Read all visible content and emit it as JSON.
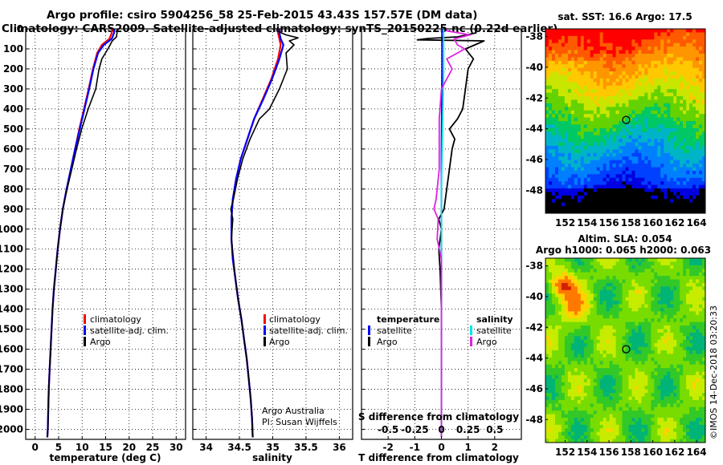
{
  "title": {
    "line1": "Argo profile: csiro 5904256_58 25-Feb-2015 43.43S 157.57E (DM data)",
    "line2": "Climatology: CARS2009. Satellite-adjusted climatology: synTS_20150225.nc (0.22d earlier)"
  },
  "colors": {
    "climatology": "#ff0000",
    "satellite": "#0000ff",
    "argo": "#000000",
    "satellite_salinity": "#00e5e5",
    "argo_salinity": "#e020e0"
  },
  "chart_data": [
    {
      "id": "temperature",
      "type": "line",
      "xlabel": "temperature (deg C)",
      "ylabel": "",
      "xlim": [
        -2,
        32
      ],
      "ylim": [
        2050,
        0
      ],
      "xticks": [
        0,
        5,
        10,
        15,
        20,
        25,
        30
      ],
      "yticks": [
        0,
        100,
        200,
        300,
        400,
        500,
        600,
        700,
        800,
        900,
        1000,
        1100,
        1200,
        1300,
        1400,
        1500,
        1600,
        1700,
        1800,
        1900,
        2000
      ],
      "grid": true,
      "legend": {
        "position": "lower-center",
        "entries": [
          "climatology",
          "satellite-adj. clim.",
          "Argo"
        ]
      },
      "series": [
        {
          "name": "climatology",
          "color": "#ff0000",
          "points": [
            [
              16.5,
              -30
            ],
            [
              16.3,
              20
            ],
            [
              15.8,
              50
            ],
            [
              14.2,
              80
            ],
            [
              13.2,
              120
            ],
            [
              12.3,
              200
            ],
            [
              11.4,
              300
            ],
            [
              10.4,
              400
            ],
            [
              9.4,
              500
            ],
            [
              8.5,
              600
            ],
            [
              7.6,
              700
            ],
            [
              6.7,
              800
            ],
            [
              5.9,
              900
            ],
            [
              5.3,
              1000
            ],
            [
              4.8,
              1100
            ],
            [
              4.4,
              1200
            ],
            [
              4.0,
              1300
            ],
            [
              3.7,
              1400
            ],
            [
              3.5,
              1500
            ],
            [
              3.3,
              1600
            ],
            [
              3.1,
              1700
            ],
            [
              2.9,
              1800
            ],
            [
              2.8,
              1900
            ],
            [
              2.7,
              2000
            ],
            [
              2.6,
              2040
            ]
          ]
        },
        {
          "name": "satellite-adj. clim.",
          "color": "#0000ff",
          "points": [
            [
              17.0,
              -30
            ],
            [
              16.8,
              20
            ],
            [
              16.3,
              50
            ],
            [
              14.6,
              80
            ],
            [
              13.4,
              120
            ],
            [
              12.4,
              200
            ],
            [
              11.5,
              300
            ],
            [
              10.5,
              400
            ],
            [
              9.5,
              500
            ],
            [
              8.5,
              600
            ],
            [
              7.6,
              700
            ],
            [
              6.7,
              800
            ],
            [
              5.9,
              900
            ],
            [
              5.3,
              1000
            ],
            [
              4.8,
              1100
            ],
            [
              4.4,
              1200
            ],
            [
              4.0,
              1300
            ],
            [
              3.7,
              1400
            ],
            [
              3.5,
              1500
            ],
            [
              3.3,
              1600
            ],
            [
              3.1,
              1700
            ],
            [
              2.9,
              1800
            ],
            [
              2.8,
              1900
            ],
            [
              2.7,
              2000
            ],
            [
              2.6,
              2040
            ]
          ]
        },
        {
          "name": "Argo",
          "color": "#000000",
          "points": [
            [
              17.6,
              -30
            ],
            [
              17.5,
              5
            ],
            [
              17.3,
              40
            ],
            [
              16.4,
              60
            ],
            [
              15.5,
              100
            ],
            [
              14.2,
              150
            ],
            [
              13.6,
              200
            ],
            [
              12.9,
              300
            ],
            [
              11.3,
              400
            ],
            [
              9.9,
              500
            ],
            [
              8.8,
              600
            ],
            [
              7.8,
              700
            ],
            [
              6.8,
              800
            ],
            [
              5.9,
              900
            ],
            [
              5.3,
              1000
            ],
            [
              4.8,
              1100
            ],
            [
              4.4,
              1200
            ],
            [
              4.0,
              1300
            ],
            [
              3.7,
              1400
            ],
            [
              3.5,
              1500
            ],
            [
              3.3,
              1600
            ],
            [
              3.1,
              1700
            ],
            [
              2.9,
              1800
            ],
            [
              2.8,
              1900
            ],
            [
              2.7,
              2000
            ],
            [
              2.6,
              2040
            ]
          ]
        }
      ]
    },
    {
      "id": "salinity",
      "type": "line",
      "xlabel": "salinity",
      "ylabel": "",
      "xlim": [
        33.8,
        36.2
      ],
      "ylim": [
        2050,
        0
      ],
      "xticks": [
        34,
        34.5,
        35,
        35.5,
        36
      ],
      "xticklabels": [
        "34",
        "34.5",
        "35",
        "35.5",
        "36"
      ],
      "grid": true,
      "legend": {
        "position": "lower-center",
        "entries": [
          "climatology",
          "satellite-adj. clim.",
          "Argo"
        ]
      },
      "annotation": [
        "Argo Australia",
        "PI: Susan Wijffels"
      ],
      "series": [
        {
          "name": "climatology",
          "color": "#ff0000",
          "points": [
            [
              35.08,
              -30
            ],
            [
              35.08,
              20
            ],
            [
              35.1,
              50
            ],
            [
              35.12,
              80
            ],
            [
              35.08,
              150
            ],
            [
              34.98,
              250
            ],
            [
              34.85,
              350
            ],
            [
              34.72,
              450
            ],
            [
              34.62,
              550
            ],
            [
              34.52,
              650
            ],
            [
              34.45,
              750
            ],
            [
              34.4,
              850
            ],
            [
              34.38,
              950
            ],
            [
              34.38,
              1050
            ],
            [
              34.4,
              1150
            ],
            [
              34.44,
              1250
            ],
            [
              34.48,
              1350
            ],
            [
              34.53,
              1450
            ],
            [
              34.57,
              1550
            ],
            [
              34.61,
              1650
            ],
            [
              34.64,
              1750
            ],
            [
              34.67,
              1850
            ],
            [
              34.69,
              1950
            ],
            [
              34.7,
              2040
            ]
          ]
        },
        {
          "name": "satellite-adj. clim.",
          "color": "#0000ff",
          "points": [
            [
              35.1,
              -30
            ],
            [
              35.1,
              20
            ],
            [
              35.12,
              50
            ],
            [
              35.16,
              80
            ],
            [
              35.1,
              150
            ],
            [
              34.99,
              250
            ],
            [
              34.86,
              350
            ],
            [
              34.72,
              450
            ],
            [
              34.62,
              550
            ],
            [
              34.52,
              650
            ],
            [
              34.45,
              750
            ],
            [
              34.4,
              850
            ],
            [
              34.38,
              950
            ],
            [
              34.38,
              1050
            ],
            [
              34.4,
              1150
            ],
            [
              34.44,
              1250
            ],
            [
              34.48,
              1350
            ],
            [
              34.53,
              1450
            ],
            [
              34.57,
              1550
            ],
            [
              34.61,
              1650
            ],
            [
              34.64,
              1750
            ],
            [
              34.67,
              1850
            ],
            [
              34.69,
              1950
            ],
            [
              34.7,
              2040
            ]
          ]
        },
        {
          "name": "Argo",
          "color": "#000000",
          "points": [
            [
              35.1,
              -30
            ],
            [
              35.06,
              10
            ],
            [
              35.2,
              30
            ],
            [
              35.38,
              45
            ],
            [
              35.25,
              60
            ],
            [
              35.32,
              80
            ],
            [
              35.2,
              120
            ],
            [
              35.22,
              200
            ],
            [
              35.1,
              300
            ],
            [
              34.95,
              400
            ],
            [
              34.8,
              450
            ],
            [
              34.66,
              550
            ],
            [
              34.55,
              650
            ],
            [
              34.47,
              750
            ],
            [
              34.41,
              850
            ],
            [
              34.37,
              900
            ],
            [
              34.4,
              950
            ],
            [
              34.38,
              1050
            ],
            [
              34.41,
              1150
            ],
            [
              34.44,
              1250
            ],
            [
              34.48,
              1350
            ],
            [
              34.53,
              1450
            ],
            [
              34.57,
              1550
            ],
            [
              34.61,
              1650
            ],
            [
              34.64,
              1750
            ],
            [
              34.67,
              1850
            ],
            [
              34.69,
              1950
            ],
            [
              34.7,
              2040
            ]
          ]
        }
      ]
    },
    {
      "id": "difference",
      "type": "line",
      "xlabel": "T difference from climatology",
      "xlabel2": "S difference from climatology",
      "xlim": [
        -3,
        3
      ],
      "xlim_salinity": [
        -0.75,
        0.75
      ],
      "ylim": [
        2050,
        0
      ],
      "xticks": [
        -2,
        -1,
        0,
        1,
        2
      ],
      "xticks2": [
        -0.5,
        -0.25,
        0,
        0.25,
        0.5
      ],
      "xticks2_labels": [
        "-0.5",
        "-0.25",
        "0",
        "0.25",
        "0.5"
      ],
      "grid": true,
      "legend": {
        "position": "lower-center",
        "temperature_title": "temperature",
        "salinity_title": "salinity",
        "entries": [
          "satellite",
          "Argo"
        ]
      },
      "series": [
        {
          "name": "satellite",
          "variable": "temperature",
          "color": "#0000ff",
          "points": [
            [
              0.02,
              -30
            ],
            [
              0.02,
              200
            ],
            [
              0.0,
              600
            ],
            [
              0.0,
              2040
            ]
          ]
        },
        {
          "name": "Argo",
          "variable": "temperature",
          "color": "#000000",
          "points": [
            [
              1.2,
              -30
            ],
            [
              1.3,
              20
            ],
            [
              0.6,
              40
            ],
            [
              -0.5,
              48
            ],
            [
              -0.9,
              55
            ],
            [
              1.6,
              60
            ],
            [
              0.9,
              100
            ],
            [
              1.2,
              150
            ],
            [
              1.0,
              200
            ],
            [
              0.9,
              300
            ],
            [
              0.8,
              400
            ],
            [
              0.6,
              450
            ],
            [
              0.3,
              500
            ],
            [
              0.5,
              550
            ],
            [
              0.4,
              600
            ],
            [
              0.3,
              700
            ],
            [
              0.2,
              800
            ],
            [
              0.1,
              900
            ],
            [
              -0.1,
              950
            ],
            [
              0.0,
              1000
            ],
            [
              -0.1,
              1100
            ],
            [
              -0.05,
              1200
            ],
            [
              0.0,
              1400
            ],
            [
              0.0,
              2040
            ]
          ]
        },
        {
          "name": "satellite",
          "variable": "salinity",
          "color": "#00e5e5",
          "points": [
            [
              0.02,
              -30
            ],
            [
              0.02,
              200
            ],
            [
              0.0,
              800
            ],
            [
              0.0,
              2040
            ]
          ]
        },
        {
          "name": "Argo",
          "variable": "salinity",
          "color": "#e020e0",
          "points": [
            [
              0.05,
              -30
            ],
            [
              0.05,
              10
            ],
            [
              0.27,
              30
            ],
            [
              0.12,
              50
            ],
            [
              0.15,
              80
            ],
            [
              0.22,
              100
            ],
            [
              0.05,
              150
            ],
            [
              0.1,
              200
            ],
            [
              0.0,
              300
            ],
            [
              -0.02,
              450
            ],
            [
              -0.02,
              700
            ],
            [
              -0.05,
              850
            ],
            [
              -0.07,
              900
            ],
            [
              -0.03,
              950
            ],
            [
              -0.04,
              1050
            ],
            [
              0.0,
              1150
            ],
            [
              0.0,
              2040
            ]
          ]
        }
      ]
    },
    {
      "id": "sst_map",
      "type": "heatmap",
      "title": "sat. SST: 16.6 Argo: 17.5",
      "xlim": [
        150.2,
        164.8
      ],
      "ylim": [
        -49.5,
        -37.5
      ],
      "xticks": [
        152,
        154,
        156,
        158,
        160,
        162,
        164
      ],
      "yticks": [
        -38,
        -40,
        -42,
        -44,
        -46,
        -48
      ],
      "marker": {
        "lon": 157.57,
        "lat": -43.43
      }
    },
    {
      "id": "sla_map",
      "type": "heatmap",
      "title": "Altim. SLA: 0.054",
      "subtitle": "Argo h1000: 0.065 h2000: 0.063",
      "xlim": [
        150.2,
        164.8
      ],
      "ylim": [
        -49.5,
        -37.5
      ],
      "xticks": [
        152,
        154,
        156,
        158,
        160,
        162,
        164
      ],
      "yticks": [
        -38,
        -40,
        -42,
        -44,
        -46,
        -48
      ],
      "marker": {
        "lon": 157.57,
        "lat": -43.43
      }
    }
  ],
  "footer": "©IMOS 14-Dec-2018 03:20:33"
}
